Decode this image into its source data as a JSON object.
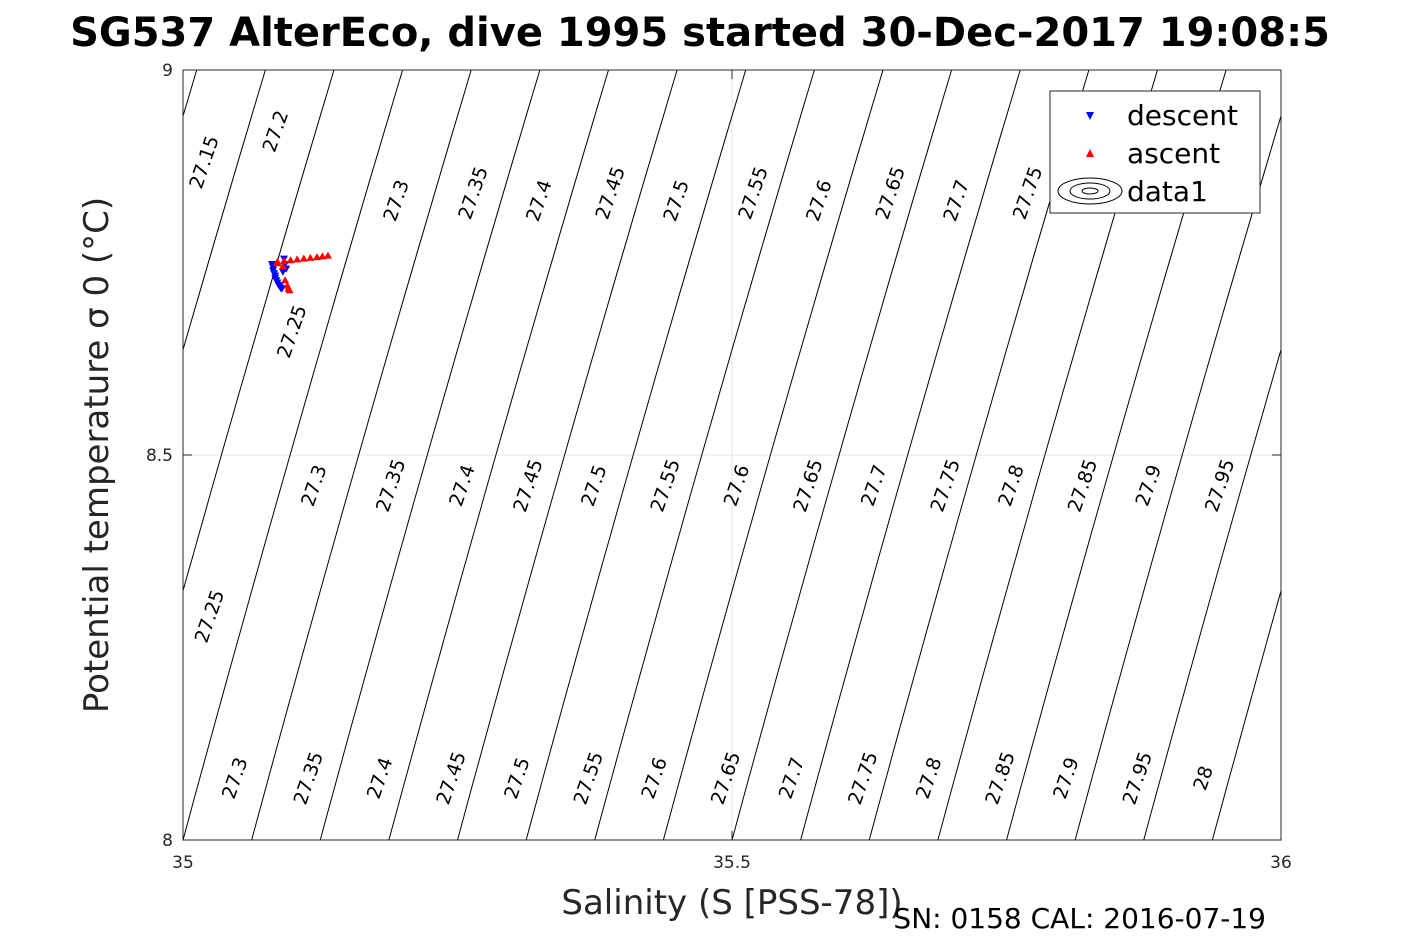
{
  "title": "SG537 AlterEco, dive 1995 started 30-Dec-2017 19:08:5",
  "footer": "SN: 0158  CAL: 2016-07-19",
  "chart_data": {
    "type": "scatter",
    "title": "SG537 AlterEco, dive 1995 started 30-Dec-2017 19:08:5",
    "xlabel": "Salinity (S [PSS-78])",
    "ylabel": "Potential temperature σ 0 (°C)",
    "xlim": [
      35,
      36
    ],
    "ylim": [
      8,
      9
    ],
    "xticks": [
      35,
      35.5,
      36
    ],
    "xtick_labels": [
      "35",
      "35.5",
      "36"
    ],
    "yticks": [
      8,
      8.5,
      9
    ],
    "ytick_labels": [
      "8",
      "8.5",
      "9"
    ],
    "grid": true,
    "legend_placement": "top-right",
    "legend": [
      {
        "label": "descent",
        "marker": "triangle-down",
        "color": "#0000ff"
      },
      {
        "label": "ascent",
        "marker": "triangle-up",
        "color": "#ff0000"
      },
      {
        "label": "data1",
        "marker": "contour",
        "color": "#000000"
      }
    ],
    "series": [
      {
        "name": "descent",
        "color": "#0000ff",
        "marker": "triangle-down",
        "x": [
          35.081,
          35.082,
          35.082,
          35.083,
          35.084,
          35.084,
          35.085,
          35.086,
          35.087,
          35.088,
          35.089,
          35.09,
          35.091,
          35.092,
          35.093,
          35.094
        ],
        "y": [
          8.748,
          8.744,
          8.74,
          8.736,
          8.733,
          8.73,
          8.727,
          8.724,
          8.721,
          8.719,
          8.717,
          8.716,
          8.738,
          8.755,
          8.748,
          8.742
        ]
      },
      {
        "name": "ascent",
        "color": "#ff0000",
        "marker": "triangle-up",
        "x": [
          35.086,
          35.092,
          35.098,
          35.104,
          35.11,
          35.116,
          35.122,
          35.127,
          35.132,
          35.086,
          35.091,
          35.093,
          35.095,
          35.096,
          35.097
        ],
        "y": [
          8.751,
          8.752,
          8.753,
          8.754,
          8.755,
          8.756,
          8.757,
          8.758,
          8.759,
          8.749,
          8.745,
          8.727,
          8.72,
          8.716,
          8.714
        ]
      }
    ],
    "contours": [
      {
        "level": "27.15",
        "labels": [
          [
            35.02,
            8.88
          ]
        ]
      },
      {
        "level": "27.2",
        "labels": [
          [
            35.085,
            8.92
          ]
        ]
      },
      {
        "level": "27.25",
        "labels": [
          [
            35.1,
            8.66
          ],
          [
            35.025,
            8.29
          ]
        ]
      },
      {
        "level": "27.3",
        "labels": [
          [
            35.195,
            8.83
          ],
          [
            35.12,
            8.46
          ],
          [
            35.048,
            8.08
          ]
        ]
      },
      {
        "level": "27.35",
        "labels": [
          [
            35.265,
            8.84
          ],
          [
            35.19,
            8.46
          ],
          [
            35.115,
            8.08
          ]
        ]
      },
      {
        "level": "27.4",
        "labels": [
          [
            35.325,
            8.83
          ],
          [
            35.255,
            8.46
          ],
          [
            35.18,
            8.08
          ]
        ]
      },
      {
        "level": "27.45",
        "labels": [
          [
            35.39,
            8.84
          ],
          [
            35.315,
            8.46
          ],
          [
            35.245,
            8.08
          ]
        ]
      },
      {
        "level": "27.5",
        "labels": [
          [
            35.45,
            8.83
          ],
          [
            35.375,
            8.46
          ],
          [
            35.305,
            8.08
          ]
        ]
      },
      {
        "level": "27.55",
        "labels": [
          [
            35.52,
            8.84
          ],
          [
            35.44,
            8.46
          ],
          [
            35.37,
            8.08
          ]
        ]
      },
      {
        "level": "27.6",
        "labels": [
          [
            35.58,
            8.83
          ],
          [
            35.505,
            8.46
          ],
          [
            35.43,
            8.08
          ]
        ]
      },
      {
        "level": "27.65",
        "labels": [
          [
            35.645,
            8.84
          ],
          [
            35.57,
            8.46
          ],
          [
            35.495,
            8.08
          ]
        ]
      },
      {
        "level": "27.7",
        "labels": [
          [
            35.705,
            8.83
          ],
          [
            35.63,
            8.46
          ],
          [
            35.555,
            8.08
          ]
        ]
      },
      {
        "level": "27.75",
        "labels": [
          [
            35.77,
            8.84
          ],
          [
            35.695,
            8.46
          ],
          [
            35.62,
            8.08
          ]
        ]
      },
      {
        "level": "27.8",
        "labels": [
          [
            35.755,
            8.46
          ],
          [
            35.68,
            8.08
          ]
        ]
      },
      {
        "level": "27.85",
        "labels": [
          [
            35.82,
            8.46
          ],
          [
            35.745,
            8.08
          ]
        ]
      },
      {
        "level": "27.9",
        "labels": [
          [
            35.88,
            8.46
          ],
          [
            35.805,
            8.08
          ]
        ]
      },
      {
        "level": "27.95",
        "labels": [
          [
            35.945,
            8.46
          ],
          [
            35.87,
            8.08
          ]
        ]
      },
      {
        "level": "28",
        "labels": [
          [
            35.93,
            8.08
          ]
        ]
      }
    ]
  }
}
